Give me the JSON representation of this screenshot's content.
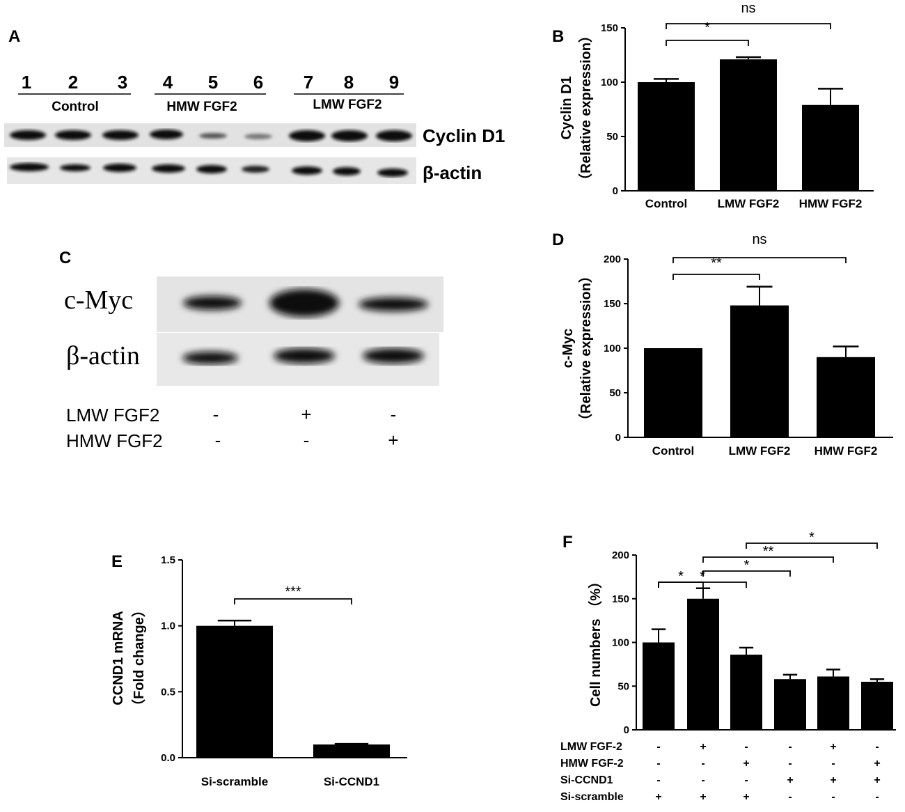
{
  "panel_labels": {
    "A": "A",
    "B": "B",
    "C": "C",
    "D": "D",
    "E": "E",
    "F": "F"
  },
  "blot_A": {
    "lanes": [
      "1",
      "2",
      "3",
      "4",
      "5",
      "6",
      "7",
      "8",
      "9"
    ],
    "groups": [
      "Control",
      "HMW FGF2",
      "LMW FGF2"
    ],
    "rows": [
      "Cyclin D1",
      "β-actin"
    ]
  },
  "blot_C": {
    "rows": [
      "c-Myc",
      "β-actin"
    ],
    "treatments": [
      {
        "name": "LMW FGF2",
        "marks": [
          "-",
          "+",
          "-"
        ]
      },
      {
        "name": "HMW FGF2",
        "marks": [
          "-",
          "-",
          "+"
        ]
      }
    ]
  },
  "chart_data": [
    {
      "panel": "B",
      "type": "bar",
      "categories": [
        "Control",
        "LMW FGF2",
        "HMW FGF2"
      ],
      "values": [
        100,
        121,
        79
      ],
      "errors": [
        3,
        2,
        15
      ],
      "ylabel_line1": "Cyclin D1",
      "ylabel_line2": "（Relative expression）",
      "ylim": [
        0,
        150
      ],
      "yticks": [
        "0",
        "50",
        "100",
        "150"
      ],
      "annotations": [
        {
          "from": 0,
          "to": 1,
          "text": "*"
        },
        {
          "from": 0,
          "to": 2,
          "text": "ns"
        }
      ]
    },
    {
      "panel": "D",
      "type": "bar",
      "categories": [
        "Control",
        "LMW FGF2",
        "HMW FGF2"
      ],
      "values": [
        100,
        148,
        90
      ],
      "errors": [
        0,
        21,
        12
      ],
      "ylabel_line1": "c-Myc",
      "ylabel_line2": "（Relative expression）",
      "ylim": [
        0,
        200
      ],
      "yticks": [
        "0",
        "50",
        "100",
        "150",
        "200"
      ],
      "annotations": [
        {
          "from": 0,
          "to": 1,
          "text": "**"
        },
        {
          "from": 0,
          "to": 2,
          "text": "ns"
        }
      ]
    },
    {
      "panel": "E",
      "type": "bar",
      "categories": [
        "Si-scramble",
        "Si-CCND1"
      ],
      "values": [
        1.0,
        0.1
      ],
      "errors": [
        0.04,
        0.005
      ],
      "ylabel_line1": "CCND1 mRNA",
      "ylabel_line2": "（Fold change）",
      "ylim": [
        0,
        1.5
      ],
      "yticks": [
        "0.0",
        "0.5",
        "1.0",
        "1.5"
      ],
      "annotations": [
        {
          "from": 0,
          "to": 1,
          "text": "***"
        }
      ]
    },
    {
      "panel": "F",
      "type": "bar",
      "values": [
        100,
        150,
        86,
        58,
        61,
        55
      ],
      "errors": [
        15,
        12,
        8,
        5,
        8,
        3
      ],
      "ylabel": "Cell numbers （%）",
      "ylim": [
        0,
        200
      ],
      "yticks": [
        "0",
        "50",
        "100",
        "150",
        "200"
      ],
      "annotations": [
        {
          "from": 0,
          "to": 1,
          "text": "*"
        },
        {
          "from": 0,
          "to": 2,
          "text": "*"
        },
        {
          "from": 1,
          "to": 3,
          "text": "*"
        },
        {
          "from": 1,
          "to": 4,
          "text": "**"
        },
        {
          "from": 2,
          "to": 5,
          "text": "*"
        }
      ],
      "treatments": [
        {
          "name": "LMW FGF-2",
          "marks": [
            "-",
            "+",
            "-",
            "-",
            "+",
            "-"
          ]
        },
        {
          "name": "HMW FGF-2",
          "marks": [
            "-",
            "-",
            "+",
            "-",
            "-",
            "+"
          ]
        },
        {
          "name": "Si-CCND1",
          "marks": [
            "-",
            "-",
            "-",
            "+",
            "+",
            "+"
          ]
        },
        {
          "name": "Si-scramble",
          "marks": [
            "+",
            "+",
            "+",
            "-",
            "-",
            "-"
          ]
        }
      ]
    }
  ]
}
